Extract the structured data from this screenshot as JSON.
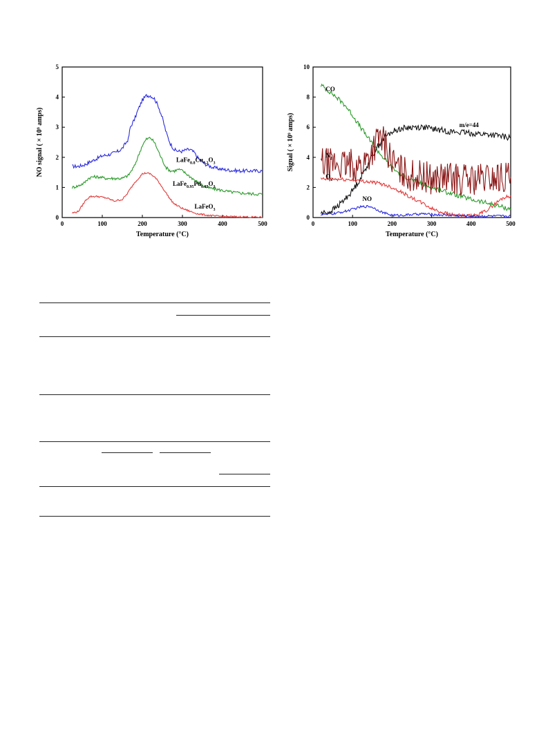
{
  "chart_data": [
    {
      "type": "line",
      "xlabel": "Temperature (°C)",
      "ylabel": "NO signal ( × 10⁹ amps)",
      "xlim": [
        0,
        500
      ],
      "ylim": [
        0,
        5
      ],
      "xticks": [
        "0",
        "100",
        "200",
        "300",
        "400",
        "500"
      ],
      "yticks": [
        "0",
        "1",
        "2",
        "3",
        "4",
        "5"
      ],
      "legend": "curve labels at right",
      "series": [
        {
          "name": "LaFe0.8Cu0.2O3",
          "color": "#2a2ae0",
          "label_main": "LaFe",
          "label_parts": [
            [
              "sub",
              "0.8"
            ],
            [
              "main",
              "Cu"
            ],
            [
              "sub",
              "0.2"
            ],
            [
              "main",
              "O"
            ],
            [
              "sub",
              "3"
            ]
          ],
          "x": [
            25,
            40,
            55,
            70,
            85,
            100,
            120,
            140,
            150,
            160,
            165,
            170,
            180,
            190,
            200,
            210,
            220,
            230,
            240,
            250,
            260,
            270,
            280,
            290,
            300,
            310,
            320,
            330,
            340,
            360,
            380,
            400,
            420,
            440,
            460,
            480,
            500
          ],
          "y": [
            1.7,
            1.7,
            1.75,
            1.85,
            1.95,
            2.05,
            2.1,
            2.2,
            2.3,
            2.5,
            2.6,
            3.0,
            3.25,
            3.6,
            3.9,
            4.05,
            4.05,
            3.95,
            3.7,
            3.3,
            2.8,
            2.45,
            2.25,
            2.2,
            2.2,
            2.25,
            2.25,
            2.15,
            1.95,
            1.75,
            1.65,
            1.6,
            1.57,
            1.55,
            1.55,
            1.55,
            1.55
          ]
        },
        {
          "name": "LaFe0.95Pd0.05O3",
          "color": "#2a9a2a",
          "label_main": "LaFe",
          "label_parts": [
            [
              "sub",
              "0.95"
            ],
            [
              "main",
              "Pd"
            ],
            [
              "sub",
              "0.05"
            ],
            [
              "main",
              "O"
            ],
            [
              "sub",
              "3"
            ]
          ],
          "x": [
            25,
            40,
            55,
            65,
            75,
            90,
            110,
            130,
            150,
            165,
            180,
            190,
            200,
            210,
            220,
            230,
            240,
            250,
            260,
            270,
            280,
            290,
            300,
            310,
            320,
            340,
            360,
            380,
            400,
            420,
            440,
            460,
            480,
            500
          ],
          "y": [
            1.0,
            1.05,
            1.15,
            1.3,
            1.35,
            1.35,
            1.3,
            1.3,
            1.3,
            1.4,
            1.7,
            2.05,
            2.4,
            2.6,
            2.65,
            2.5,
            2.2,
            1.9,
            1.65,
            1.55,
            1.55,
            1.6,
            1.55,
            1.45,
            1.35,
            1.15,
            1.0,
            0.95,
            0.9,
            0.85,
            0.82,
            0.8,
            0.78,
            0.78
          ]
        },
        {
          "name": "LaFeO3",
          "color": "#e33838",
          "label_main": "LaFeO",
          "label_parts": [
            [
              "sub",
              "3"
            ]
          ],
          "x": [
            25,
            40,
            50,
            60,
            70,
            80,
            90,
            110,
            130,
            150,
            160,
            170,
            180,
            190,
            200,
            210,
            220,
            230,
            240,
            250,
            260,
            270,
            280,
            300,
            320,
            340,
            360,
            380,
            400,
            420,
            440,
            460,
            480,
            500
          ],
          "y": [
            0.15,
            0.2,
            0.4,
            0.6,
            0.7,
            0.7,
            0.7,
            0.65,
            0.55,
            0.6,
            0.75,
            0.95,
            1.15,
            1.3,
            1.45,
            1.48,
            1.45,
            1.35,
            1.2,
            1.0,
            0.8,
            0.6,
            0.45,
            0.3,
            0.2,
            0.12,
            0.08,
            0.05,
            0.04,
            0.03,
            0.02,
            0.02,
            0.01,
            0.01
          ]
        }
      ]
    },
    {
      "type": "line",
      "xlabel": "Temperature (°C)",
      "ylabel": "Signal ( × 10⁹ amps)",
      "xlim": [
        0,
        500
      ],
      "ylim": [
        0,
        10
      ],
      "xticks": [
        "0",
        "100",
        "200",
        "300",
        "400",
        "500"
      ],
      "yticks": [
        "0",
        "2",
        "4",
        "6",
        "8",
        "10"
      ],
      "legend": "curve labels inside plot",
      "series": [
        {
          "name": "CO",
          "color": "#2a9a2a",
          "label_main": "CO",
          "label_parts": [],
          "x": [
            20,
            50,
            80,
            100,
            120,
            150,
            180,
            200,
            220,
            250,
            280,
            300,
            350,
            400,
            450,
            500
          ],
          "y": [
            8.8,
            8.2,
            7.5,
            6.8,
            6.0,
            4.9,
            3.9,
            3.3,
            2.9,
            2.5,
            2.2,
            2.0,
            1.6,
            1.2,
            0.9,
            0.55
          ]
        },
        {
          "name": "m/e=44",
          "color": "#111111",
          "label_main": "m/e=44",
          "label_parts": [],
          "x": [
            20,
            40,
            60,
            80,
            100,
            120,
            140,
            160,
            180,
            200,
            220,
            250,
            280,
            300,
            350,
            400,
            450,
            500
          ],
          "y": [
            0.3,
            0.35,
            0.7,
            1.2,
            1.8,
            2.6,
            3.6,
            4.6,
            5.3,
            5.7,
            5.9,
            6.0,
            6.0,
            5.9,
            5.7,
            5.6,
            5.5,
            5.3
          ]
        },
        {
          "name": "N2",
          "color": "#8a1414",
          "label_main": "N",
          "label_parts": [
            [
              "sub",
              "2"
            ]
          ],
          "x": [
            20,
            40,
            60,
            80,
            100,
            120,
            140,
            160,
            170,
            180,
            190,
            200,
            220,
            250,
            300,
            350,
            400,
            450,
            500
          ],
          "y": [
            3.6,
            3.5,
            3.6,
            3.4,
            3.5,
            3.4,
            4.0,
            5.0,
            5.3,
            5.0,
            4.4,
            3.7,
            3.1,
            2.8,
            2.6,
            2.6,
            2.5,
            2.6,
            2.7
          ]
        },
        {
          "name": "O2",
          "color": "#e33838",
          "label_main": "O",
          "label_parts": [
            [
              "sub",
              "2"
            ]
          ],
          "x": [
            20,
            50,
            100,
            150,
            180,
            200,
            220,
            250,
            280,
            300,
            320,
            350,
            380,
            400,
            420,
            440,
            460,
            480,
            500
          ],
          "y": [
            2.55,
            2.55,
            2.5,
            2.35,
            2.2,
            2.0,
            1.75,
            1.3,
            0.9,
            0.6,
            0.4,
            0.2,
            0.1,
            0.1,
            0.2,
            0.5,
            0.9,
            1.3,
            1.45
          ]
        },
        {
          "name": "NO",
          "color": "#2a2ae0",
          "label_main": "NO",
          "label_parts": [],
          "x": [
            20,
            50,
            80,
            100,
            120,
            140,
            150,
            160,
            180,
            200,
            220,
            250,
            280,
            300,
            350,
            400,
            450,
            500
          ],
          "y": [
            0.2,
            0.25,
            0.4,
            0.55,
            0.7,
            0.75,
            0.7,
            0.55,
            0.3,
            0.15,
            0.15,
            0.2,
            0.25,
            0.2,
            0.15,
            0.1,
            0.1,
            0.1
          ]
        }
      ]
    }
  ]
}
